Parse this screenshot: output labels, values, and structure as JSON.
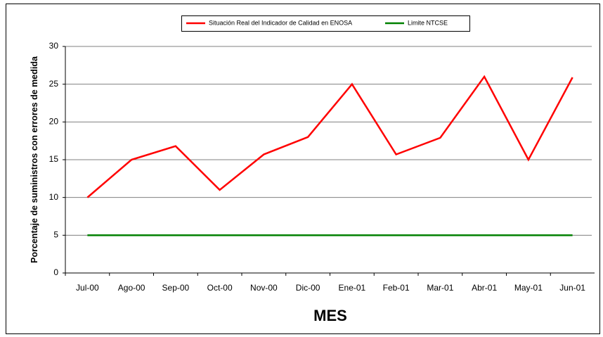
{
  "chart_data": {
    "type": "line",
    "x_label": "MES",
    "y_label": "Porcentaje de suministros con errores de medida",
    "categories": [
      "Jul-00",
      "Ago-00",
      "Sep-00",
      "Oct-00",
      "Nov-00",
      "Dic-00",
      "Ene-01",
      "Feb-01",
      "Mar-01",
      "Abr-01",
      "May-01",
      "Jun-01"
    ],
    "series": [
      {
        "name": "Situación Real del Indicador de Calidad en ENOSA",
        "color": "#ff0000",
        "values": [
          10,
          15,
          16.8,
          11,
          15.7,
          18,
          25,
          15.7,
          17.9,
          26,
          15,
          25.9
        ]
      },
      {
        "name": "Limite  NTCSE",
        "color": "#008000",
        "values": [
          5,
          5,
          5,
          5,
          5,
          5,
          5,
          5,
          5,
          5,
          5,
          5
        ]
      }
    ],
    "ylim": [
      0,
      30
    ],
    "yticks": [
      0,
      5,
      10,
      15,
      20,
      25,
      30
    ],
    "grid": true,
    "legend": "top"
  }
}
